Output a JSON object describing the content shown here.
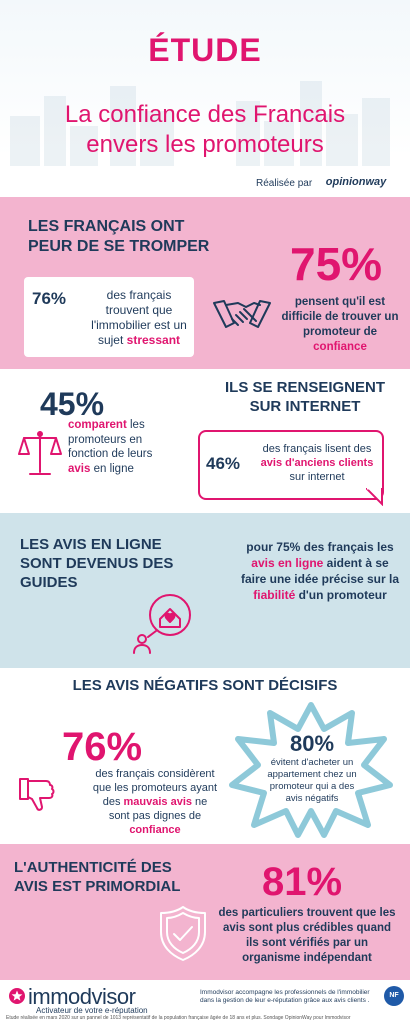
{
  "header": {
    "etude": "ÉTUDE",
    "title_line1": "La confiance des Francais",
    "title_line2": "envers les promoteurs",
    "realisee": "Réalisée par",
    "partner": "opinionway"
  },
  "section1": {
    "title_line1": "LES FRANÇAIS ONT",
    "title_line2": "PEUR DE SE TROMPER",
    "card_percent": "76%",
    "card_text_a": "des français trouvent que l'immobilier est un sujet ",
    "card_text_b": "stressant",
    "big_percent": "75%",
    "right_text_a": "pensent qu'il est difficile de trouver un promoteur de ",
    "right_text_b": "confiance",
    "icon": "handshake-icon"
  },
  "section2": {
    "percent": "45%",
    "left_a": "comparent",
    "left_b": " les promoteurs en fonction de leurs ",
    "left_c": "avis",
    "left_d": " en ligne",
    "title_line1": "ILS SE RENSEIGNENT",
    "title_line2": "SUR INTERNET",
    "bubble_percent": "46%",
    "bubble_a": "des français lisent des ",
    "bubble_b": "avis d'anciens clients",
    "bubble_c": " sur internet",
    "icon": "scale-icon"
  },
  "section3": {
    "title_line1": "LES AVIS EN LIGNE",
    "title_line2": "SONT DEVENUS DES",
    "title_line3": "GUIDES",
    "text_a": "pour 75% des français les ",
    "text_b": "avis en ligne",
    "text_c": " aident à se faire une idée précise sur la ",
    "text_d": "fiabilité",
    "text_e": " d'un promoteur",
    "icon": "home-love-icon"
  },
  "section4": {
    "title": "LES AVIS NÉGATIFS SONT DÉCISIFS",
    "big_percent": "76%",
    "left_a": "des français considèrent que les promoteurs ayant des ",
    "left_b": "mauvais avis",
    "left_c": " ne sont pas dignes de ",
    "left_d": "confiance",
    "burst_percent": "80%",
    "burst_text": "évitent d'acheter un appartement chez un promoteur qui a des avis négatifs",
    "icon": "thumbs-down-icon"
  },
  "section5": {
    "title_line1": "L'AUTHENTICITÉ DES",
    "title_line2": "AVIS EST PRIMORDIAL",
    "big_percent": "81%",
    "text": "des particuliers trouvent que les avis sont plus crédibles quand ils sont vérifiés par un organisme indépendant",
    "icon": "shield-check-icon"
  },
  "footer": {
    "brand": "immodvisor",
    "tagline": "Activateur de votre e-réputation",
    "description": "Immodvisor accompagne les professionnels de l'immobilier dans la gestion de leur e-réputation grâce aux avis clients .",
    "badge": "NF",
    "note": "Etude réalisée en mars 2020 sur un pannel de 1013 représentatif de la population française âgée de 18 ans et plus. Sondage OpinionWay pour Immodvisor"
  },
  "colors": {
    "pink": "#e0156f",
    "navy": "#1f3a5a",
    "pink_bg": "#f3b4cf",
    "blue_bg": "#cfe3ea"
  }
}
